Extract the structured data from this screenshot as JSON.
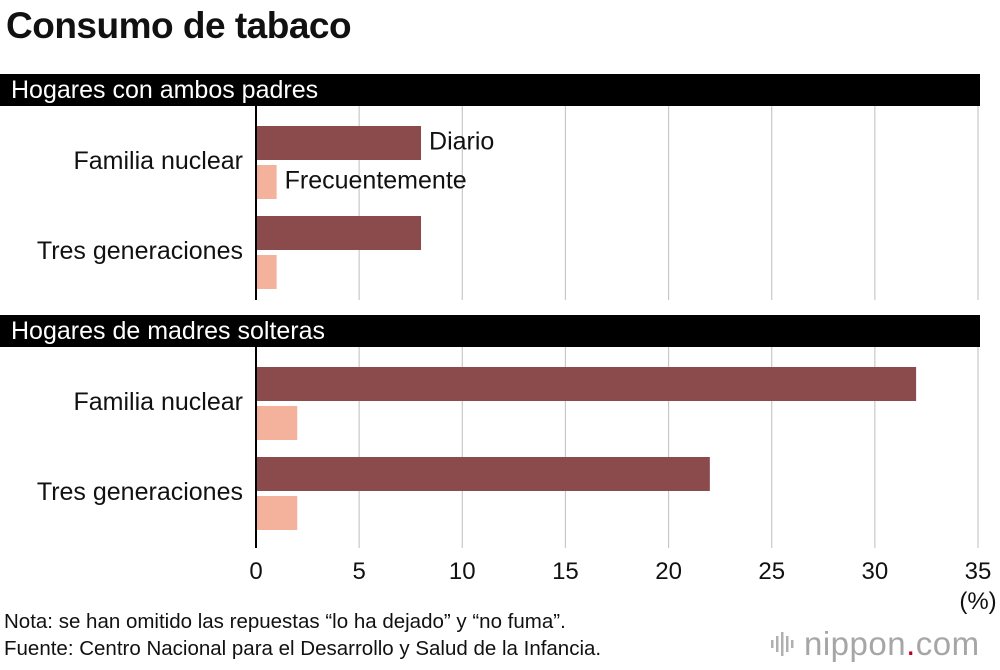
{
  "chart_data": {
    "type": "bar",
    "orientation": "horizontal",
    "title": "Consumo de tabaco",
    "xunit": "(%)",
    "xlim": [
      0,
      35
    ],
    "xticks": [
      0,
      5,
      10,
      15,
      20,
      25,
      30,
      35
    ],
    "legend": [
      "Diario",
      "Frecuentemente"
    ],
    "colors": {
      "diario": "#8b4a4c",
      "frecuentemente": "#f4b29c",
      "grid": "#c8c8c8",
      "band": "#000000"
    },
    "groups": [
      {
        "name": "Hogares con ambos padres",
        "categories": [
          "Familia nuclear",
          "Tres generaciones"
        ],
        "series": [
          {
            "name": "Diario",
            "values": [
              8,
              8
            ]
          },
          {
            "name": "Frecuentemente",
            "values": [
              1,
              1
            ]
          }
        ]
      },
      {
        "name": "Hogares de madres solteras",
        "categories": [
          "Familia nuclear",
          "Tres generaciones"
        ],
        "series": [
          {
            "name": "Diario",
            "values": [
              32,
              22
            ]
          },
          {
            "name": "Frecuentemente",
            "values": [
              2,
              2
            ]
          }
        ]
      }
    ],
    "notes": [
      "Nota: se han omitido las repuestas “lo ha dejado” y “no fuma”.",
      "Fuente: Centro Nacional para el Desarrollo y Salud de la Infancia."
    ]
  },
  "logo": {
    "word": "nippon",
    "dot": ".",
    "tld": "com"
  }
}
